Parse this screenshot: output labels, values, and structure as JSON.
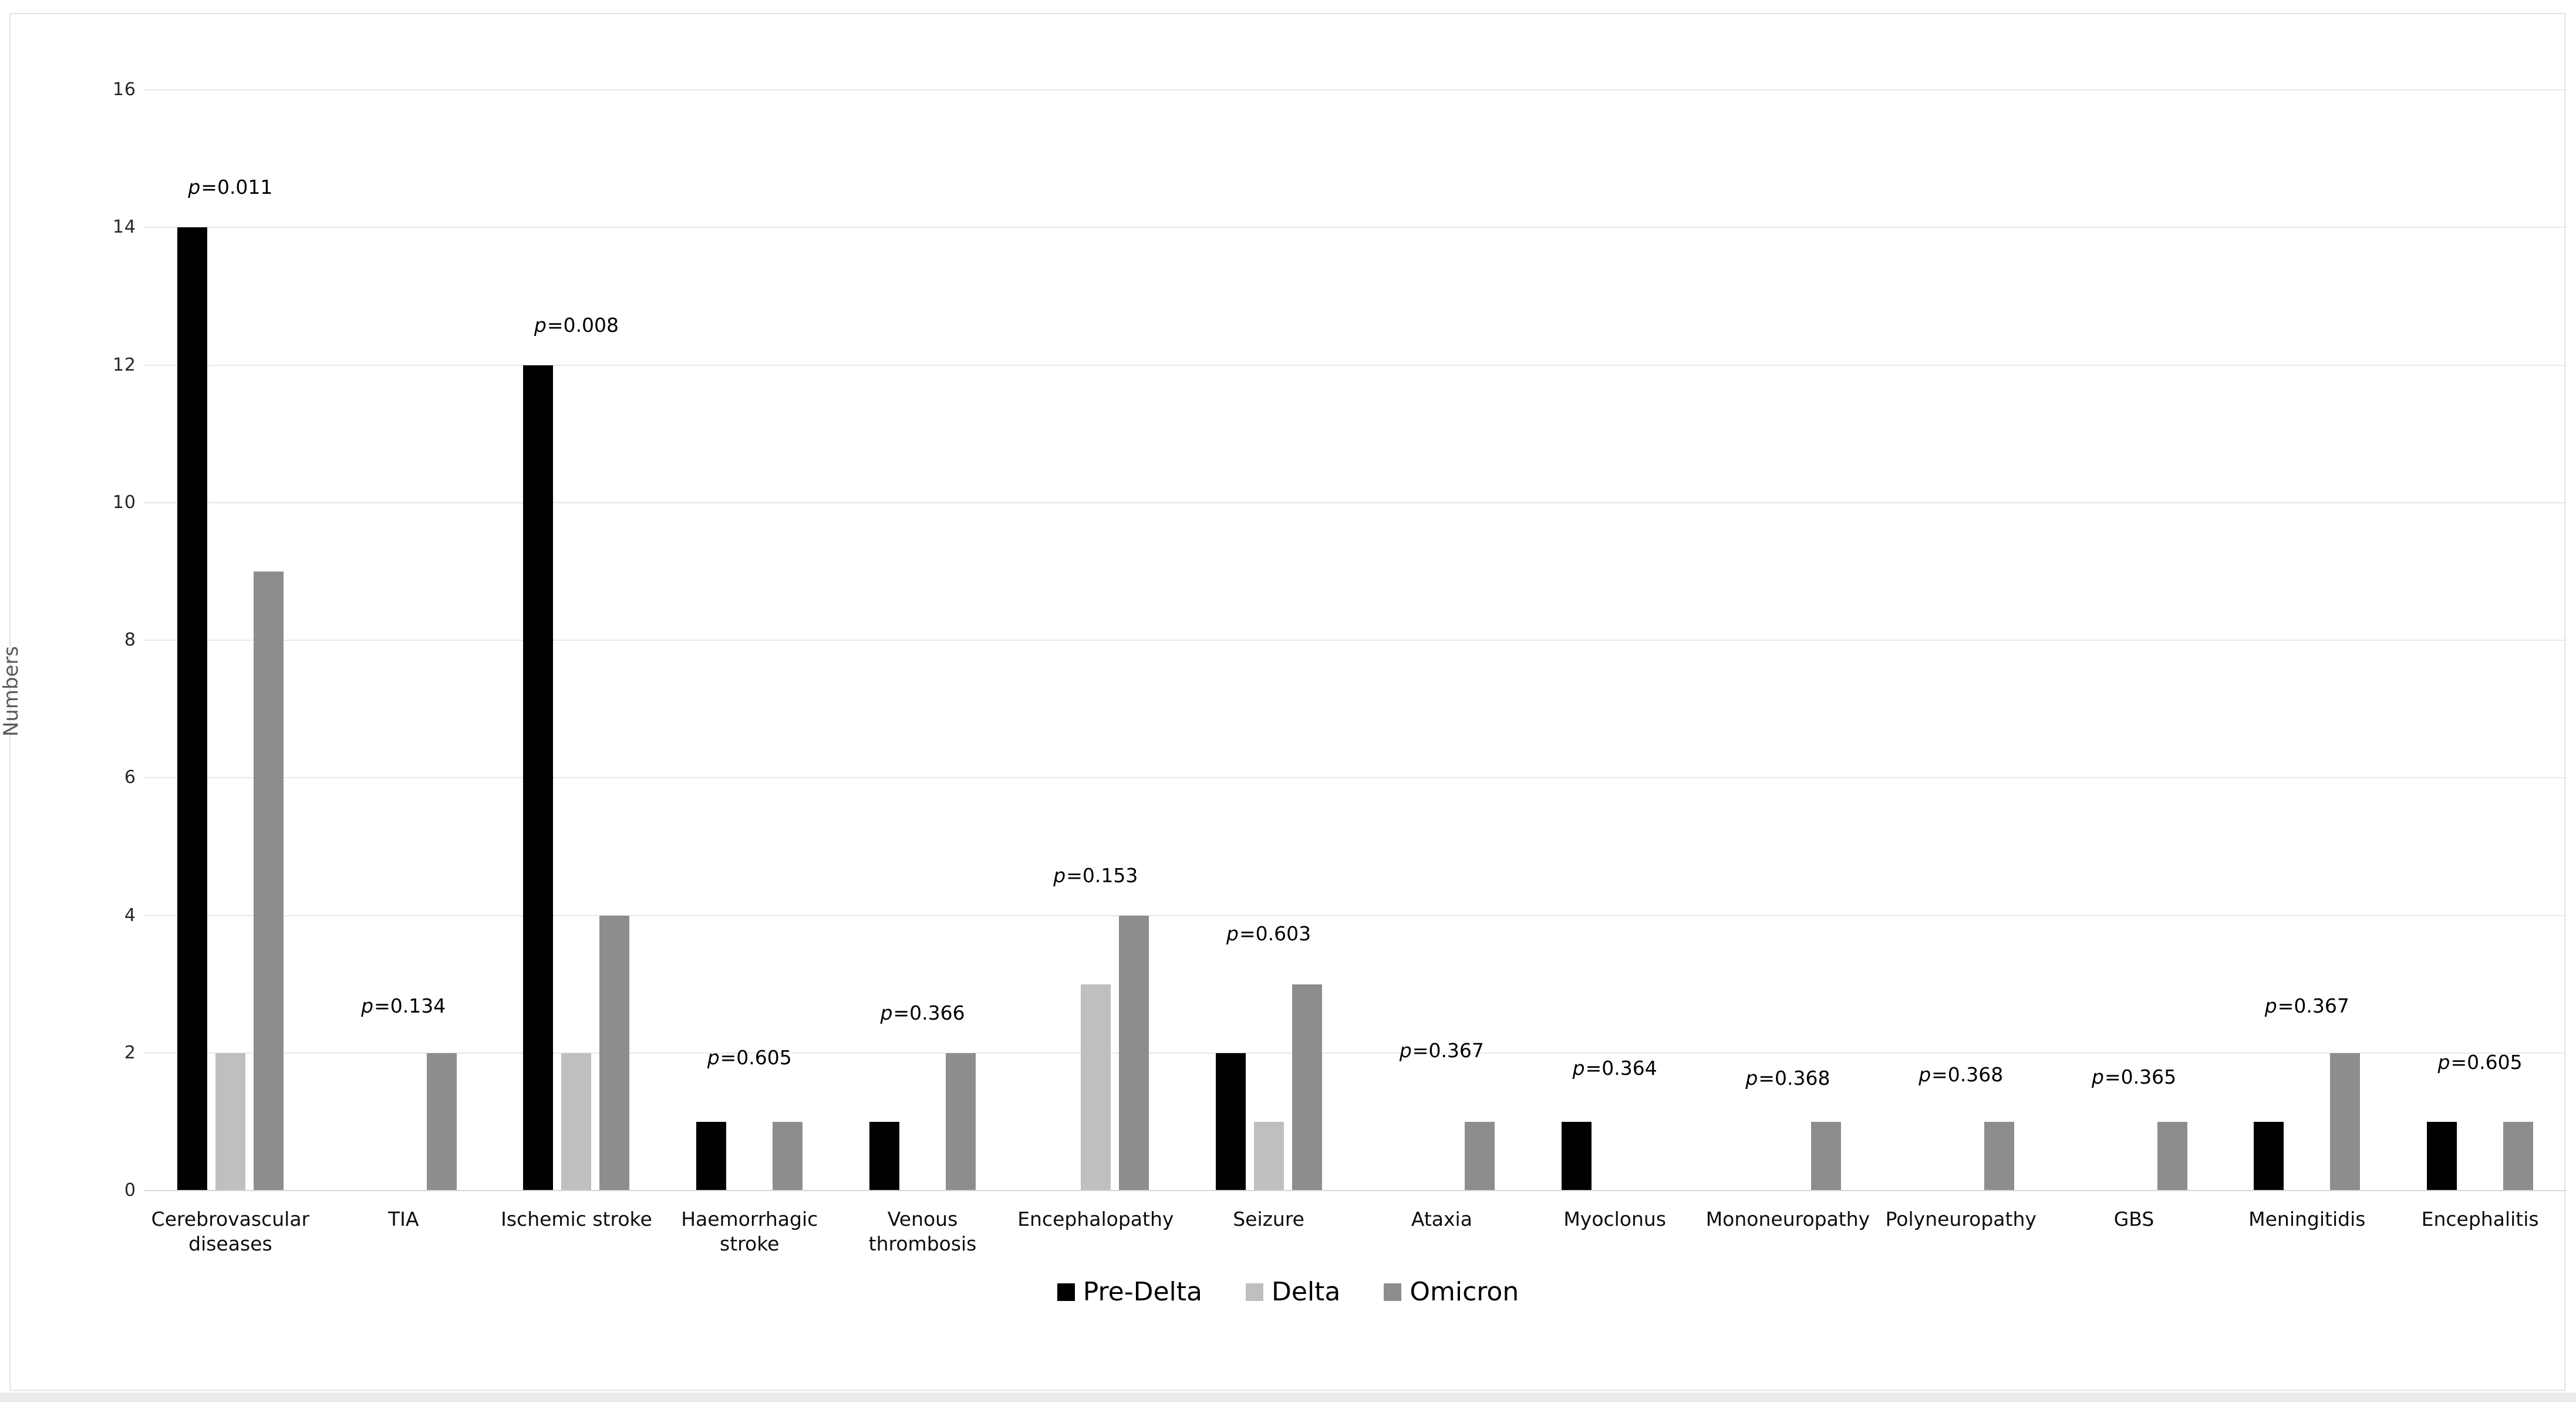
{
  "page": {
    "background": "#ffffff",
    "card_border_color": "#e2e2e2",
    "bottom_strip_color": "#eaeaea",
    "gridline_color": "#e8e8e8",
    "baseline_color": "#d7d7d7"
  },
  "chart_data": {
    "type": "bar",
    "title": "",
    "xlabel": "",
    "ylabel": "Numbers",
    "ylim": [
      0,
      16
    ],
    "yticks": [
      0,
      2,
      4,
      6,
      8,
      10,
      12,
      14,
      16
    ],
    "grid": true,
    "legend_position": "bottom-center",
    "categories": [
      "Cerebrovascular diseases",
      "TIA",
      "Ischemic stroke",
      "Haemorrhagic stroke",
      "Venous thrombosis",
      "Encephalopathy",
      "Seizure",
      "Ataxia",
      "Myoclonus",
      "Mononeuropathy",
      "Polyneuropathy",
      "GBS",
      "Meningitidis",
      "Encephalitis"
    ],
    "series": [
      {
        "name": "Pre-Delta",
        "color": "#000000",
        "values": [
          14,
          0,
          12,
          1,
          1,
          0,
          2,
          0,
          1,
          0,
          0,
          0,
          1,
          1
        ]
      },
      {
        "name": "Delta",
        "color": "#bfbfbf",
        "values": [
          2,
          0,
          2,
          0,
          0,
          3,
          1,
          0,
          0,
          0,
          0,
          0,
          0,
          0
        ]
      },
      {
        "name": "Omicron",
        "color": "#8d8d8d",
        "values": [
          9,
          2,
          4,
          1,
          2,
          4,
          3,
          1,
          0,
          1,
          1,
          1,
          2,
          1
        ]
      }
    ],
    "annotations": {
      "p_values": [
        "p=0.011",
        "p=0.134",
        "p=0.008",
        "p=0.605",
        "p=0.366",
        "p=0.153",
        "p=0.603",
        "p=0.367",
        "p=0.364",
        "p=0.368",
        "p=0.368",
        "p=0.365",
        "p=0.367",
        "p=0.605"
      ],
      "p_label_y": [
        14.4,
        2.5,
        12.4,
        1.75,
        2.4,
        4.4,
        3.55,
        1.85,
        1.6,
        1.45,
        1.5,
        1.47,
        2.5,
        1.68
      ]
    }
  }
}
